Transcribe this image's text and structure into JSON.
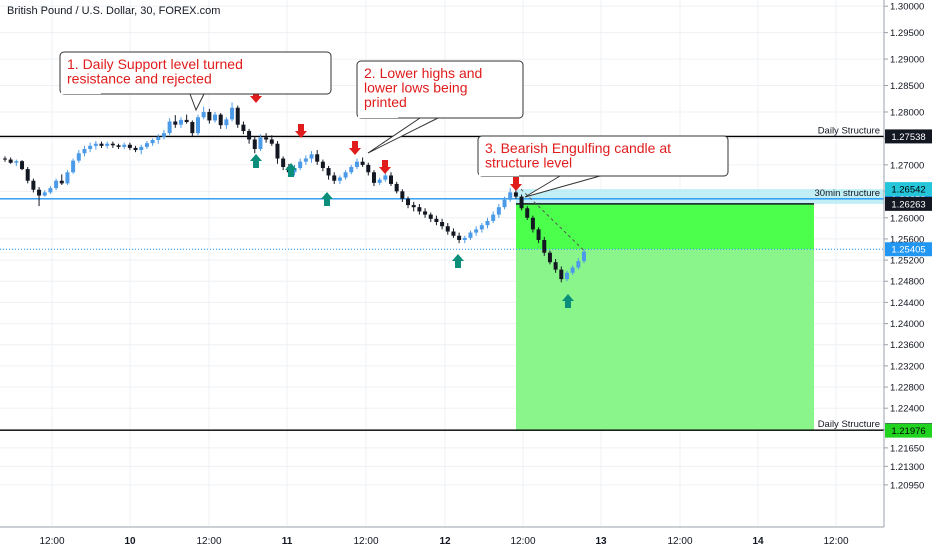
{
  "header": {
    "title": "British Pound / U.S. Dollar, 30, FOREX.com"
  },
  "chart_data": {
    "type": "candlestick",
    "title": "British Pound / U.S. Dollar, 30, FOREX.com",
    "symbol": "GBPUSD",
    "timeframe": "30",
    "ylim": [
      1.204,
      1.3006
    ],
    "y_ticks": [
      "1.30000",
      "1.29500",
      "1.29000",
      "1.28500",
      "1.28000",
      "1.27500",
      "1.27000",
      "1.26500",
      "1.26000",
      "1.25600",
      "1.25200",
      "1.24800",
      "1.24400",
      "1.24000",
      "1.23600",
      "1.23200",
      "1.22800",
      "1.22400",
      "1.22000",
      "1.21650",
      "1.21300",
      "1.20950"
    ],
    "x_ticks": [
      "12:00",
      "10",
      "12:00",
      "11",
      "12:00",
      "12",
      "12:00",
      "13",
      "12:00",
      "14",
      "12:00"
    ],
    "grid": true,
    "levels": [
      {
        "label": "Daily Structure",
        "price": "1.27538",
        "value": 1.27538,
        "color": "#000000",
        "tag_bg": "#131722",
        "tag_fg": "#ffffff"
      },
      {
        "label": "30min structure",
        "price": "1.26359",
        "value": 1.26359,
        "color": "#2196f3",
        "tag_bg": "#2196f3",
        "tag_fg": "#ffffff"
      },
      {
        "label": "Daily Structure",
        "price": "1.21985",
        "value": 1.21985,
        "color": "#000000",
        "tag_bg": "#131722",
        "tag_fg": "#ffffff"
      }
    ],
    "price_tags": [
      {
        "price": "1.26542",
        "value": 1.26542,
        "bg": "#26c6da",
        "fg": "#000000"
      },
      {
        "price": "1.26263",
        "value": 1.26263,
        "bg": "#131722",
        "fg": "#ffffff"
      },
      {
        "price": "1.25405",
        "value": 1.25405,
        "bg": "#2196f3",
        "fg": "#ffffff"
      },
      {
        "price": "1.21976",
        "value": 1.21976,
        "bg": "#1fd31f",
        "fg": "#000000"
      }
    ],
    "position": {
      "entry": 1.26263,
      "stop": 1.26542,
      "target": 1.21976,
      "current": 1.25405,
      "stop_color": "#b2ebf2",
      "profit_color": "#4cff4c",
      "target_color": "#8af58a"
    },
    "annotations": [
      {
        "lines": [
          "1. Daily Support level turned",
          "resistance and rejected"
        ]
      },
      {
        "lines": [
          "2. Lower highs and",
          "lower lows being",
          "printed"
        ]
      },
      {
        "lines": [
          "3. Bearish Engulfing candle at",
          "structure level"
        ]
      }
    ],
    "candles_ohlc": [
      [
        1.2712,
        1.2716,
        1.2706,
        1.271
      ],
      [
        1.271,
        1.2714,
        1.2702,
        1.2704
      ],
      [
        1.2704,
        1.271,
        1.2698,
        1.2707
      ],
      [
        1.2707,
        1.2709,
        1.269,
        1.2692
      ],
      [
        1.2692,
        1.2696,
        1.2665,
        1.267
      ],
      [
        1.267,
        1.2674,
        1.2648,
        1.2653
      ],
      [
        1.2653,
        1.2658,
        1.2622,
        1.2642
      ],
      [
        1.2642,
        1.2652,
        1.264,
        1.2648
      ],
      [
        1.2648,
        1.266,
        1.2645,
        1.2656
      ],
      [
        1.2656,
        1.2674,
        1.2652,
        1.267
      ],
      [
        1.267,
        1.2682,
        1.2662,
        1.2665
      ],
      [
        1.2665,
        1.269,
        1.2662,
        1.2686
      ],
      [
        1.2686,
        1.2712,
        1.2683,
        1.2708
      ],
      [
        1.2708,
        1.2728,
        1.2704,
        1.2722
      ],
      [
        1.2722,
        1.2736,
        1.2716,
        1.273
      ],
      [
        1.273,
        1.2742,
        1.2724,
        1.2736
      ],
      [
        1.2736,
        1.2745,
        1.2729,
        1.274
      ],
      [
        1.274,
        1.2744,
        1.2732,
        1.2736
      ],
      [
        1.2736,
        1.2744,
        1.2731,
        1.274
      ],
      [
        1.274,
        1.2744,
        1.2732,
        1.2737
      ],
      [
        1.2737,
        1.274,
        1.273,
        1.2734
      ],
      [
        1.2734,
        1.2742,
        1.273,
        1.2738
      ],
      [
        1.2738,
        1.2742,
        1.2728,
        1.2732
      ],
      [
        1.2732,
        1.2736,
        1.2724,
        1.2728
      ],
      [
        1.2728,
        1.2738,
        1.272,
        1.2734
      ],
      [
        1.2734,
        1.2745,
        1.273,
        1.2741
      ],
      [
        1.2741,
        1.275,
        1.2736,
        1.2747
      ],
      [
        1.2747,
        1.2758,
        1.274,
        1.2753
      ],
      [
        1.2753,
        1.2766,
        1.2748,
        1.276
      ],
      [
        1.276,
        1.2788,
        1.2756,
        1.2782
      ],
      [
        1.2782,
        1.2794,
        1.277,
        1.2776
      ],
      [
        1.2776,
        1.279,
        1.277,
        1.2785
      ],
      [
        1.2785,
        1.2795,
        1.2778,
        1.2781
      ],
      [
        1.2781,
        1.2784,
        1.2754,
        1.276
      ],
      [
        1.276,
        1.2795,
        1.2756,
        1.279
      ],
      [
        1.279,
        1.281,
        1.2786,
        1.28
      ],
      [
        1.28,
        1.2806,
        1.2778,
        1.2784
      ],
      [
        1.2784,
        1.28,
        1.278,
        1.2795
      ],
      [
        1.2795,
        1.2798,
        1.2768,
        1.2775
      ],
      [
        1.2775,
        1.279,
        1.2768,
        1.2786
      ],
      [
        1.2786,
        1.2818,
        1.2782,
        1.2808
      ],
      [
        1.2808,
        1.2812,
        1.277,
        1.2776
      ],
      [
        1.2776,
        1.2782,
        1.2758,
        1.2764
      ],
      [
        1.2764,
        1.2768,
        1.274,
        1.2748
      ],
      [
        1.2748,
        1.2754,
        1.2722,
        1.273
      ],
      [
        1.273,
        1.2758,
        1.2726,
        1.2752
      ],
      [
        1.2752,
        1.276,
        1.2742,
        1.2748
      ],
      [
        1.2748,
        1.2756,
        1.2736,
        1.274
      ],
      [
        1.274,
        1.2745,
        1.2702,
        1.2712
      ],
      [
        1.2712,
        1.2716,
        1.269,
        1.2696
      ],
      [
        1.2696,
        1.2702,
        1.268,
        1.2686
      ],
      [
        1.2686,
        1.27,
        1.268,
        1.2694
      ],
      [
        1.2694,
        1.2712,
        1.269,
        1.2706
      ],
      [
        1.2706,
        1.2718,
        1.27,
        1.2712
      ],
      [
        1.2712,
        1.2726,
        1.2704,
        1.272
      ],
      [
        1.272,
        1.2728,
        1.27,
        1.2706
      ],
      [
        1.2706,
        1.271,
        1.2688,
        1.2694
      ],
      [
        1.2694,
        1.2698,
        1.2672,
        1.268
      ],
      [
        1.268,
        1.2686,
        1.2664,
        1.267
      ],
      [
        1.267,
        1.268,
        1.2664,
        1.2676
      ],
      [
        1.2676,
        1.269,
        1.2672,
        1.2686
      ],
      [
        1.2686,
        1.27,
        1.2682,
        1.2696
      ],
      [
        1.2696,
        1.2712,
        1.2692,
        1.2706
      ],
      [
        1.2706,
        1.2714,
        1.2696,
        1.27
      ],
      [
        1.27,
        1.2704,
        1.268,
        1.2686
      ],
      [
        1.2686,
        1.269,
        1.266,
        1.2666
      ],
      [
        1.2666,
        1.2676,
        1.2662,
        1.2672
      ],
      [
        1.2672,
        1.2684,
        1.2668,
        1.268
      ],
      [
        1.268,
        1.2686,
        1.266,
        1.2664
      ],
      [
        1.2664,
        1.2668,
        1.2646,
        1.265
      ],
      [
        1.265,
        1.2654,
        1.263,
        1.2636
      ],
      [
        1.2636,
        1.264,
        1.2618,
        1.2624
      ],
      [
        1.2624,
        1.263,
        1.2612,
        1.262
      ],
      [
        1.262,
        1.2626,
        1.2606,
        1.2612
      ],
      [
        1.2612,
        1.2618,
        1.26,
        1.2606
      ],
      [
        1.2606,
        1.261,
        1.2592,
        1.2598
      ],
      [
        1.2598,
        1.2604,
        1.2586,
        1.2592
      ],
      [
        1.2592,
        1.2598,
        1.2578,
        1.2584
      ],
      [
        1.2584,
        1.259,
        1.2568,
        1.2574
      ],
      [
        1.2574,
        1.258,
        1.2562,
        1.2566
      ],
      [
        1.2566,
        1.2572,
        1.2552,
        1.2558
      ],
      [
        1.2558,
        1.2566,
        1.2552,
        1.2562
      ],
      [
        1.2562,
        1.2576,
        1.2558,
        1.2572
      ],
      [
        1.2572,
        1.2584,
        1.2566,
        1.2578
      ],
      [
        1.2578,
        1.259,
        1.2572,
        1.2586
      ],
      [
        1.2586,
        1.26,
        1.258,
        1.2594
      ],
      [
        1.2594,
        1.2612,
        1.259,
        1.2606
      ],
      [
        1.2606,
        1.2626,
        1.26,
        1.262
      ],
      [
        1.262,
        1.264,
        1.2616,
        1.2634
      ],
      [
        1.2634,
        1.2656,
        1.263,
        1.2648
      ],
      [
        1.2648,
        1.266,
        1.2636,
        1.264
      ],
      [
        1.264,
        1.2644,
        1.2614,
        1.2618
      ],
      [
        1.2618,
        1.2622,
        1.2596,
        1.26
      ],
      [
        1.26,
        1.2604,
        1.2572,
        1.2578
      ],
      [
        1.2578,
        1.2582,
        1.2552,
        1.2558
      ],
      [
        1.2558,
        1.2564,
        1.2528,
        1.2534
      ],
      [
        1.2534,
        1.2538,
        1.2512,
        1.2516
      ],
      [
        1.2516,
        1.2522,
        1.2496,
        1.2502
      ],
      [
        1.2502,
        1.2508,
        1.2478,
        1.2484
      ],
      [
        1.2484,
        1.25,
        1.248,
        1.2496
      ],
      [
        1.2496,
        1.251,
        1.2492,
        1.2506
      ],
      [
        1.2506,
        1.2524,
        1.2502,
        1.2518
      ],
      [
        1.2518,
        1.254,
        1.2514,
        1.2536
      ]
    ]
  }
}
